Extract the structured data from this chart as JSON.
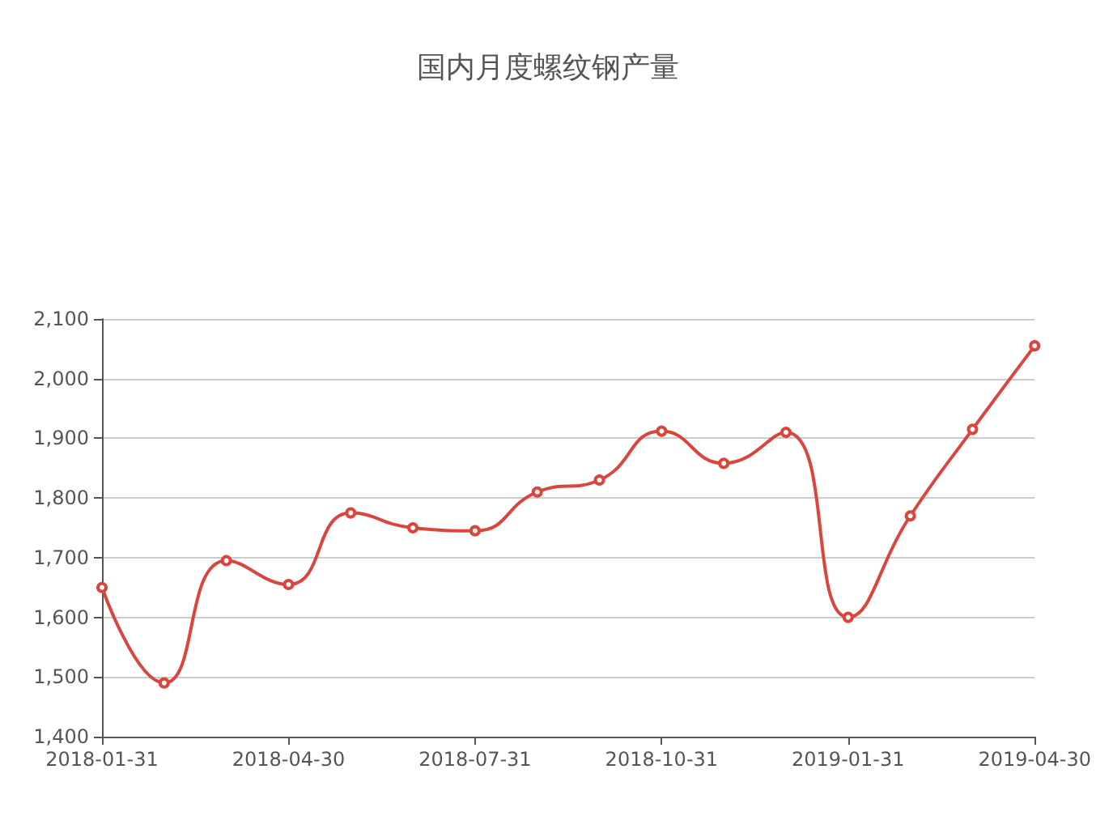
{
  "chart_data": {
    "type": "line",
    "title": "国内月度螺纹钢产量",
    "categories": [
      "2018-01-31",
      null,
      null,
      "2018-04-30",
      null,
      null,
      "2018-07-31",
      null,
      null,
      "2018-10-31",
      null,
      null,
      "2019-01-31",
      null,
      null,
      "2019-04-30"
    ],
    "series": [
      {
        "color": "#d9463e",
        "values": [
          1650,
          1490,
          1695,
          1655,
          1775,
          1750,
          1745,
          1810,
          1830,
          1912,
          1858,
          1910,
          1600,
          1770,
          1915,
          2055
        ]
      }
    ],
    "ylim": [
      1400,
      2100
    ],
    "yticks": [
      {
        "value": 1400,
        "label": "1,400"
      },
      {
        "value": 1500,
        "label": "1,500"
      },
      {
        "value": 1600,
        "label": "1,600"
      },
      {
        "value": 1700,
        "label": "1,700"
      },
      {
        "value": 1800,
        "label": "1,800"
      },
      {
        "value": 1900,
        "label": "1,900"
      },
      {
        "value": 2000,
        "label": "2,000"
      },
      {
        "value": 2100,
        "label": "2,100"
      }
    ],
    "grid": "y",
    "marker": "circle",
    "line_style": "solid"
  }
}
